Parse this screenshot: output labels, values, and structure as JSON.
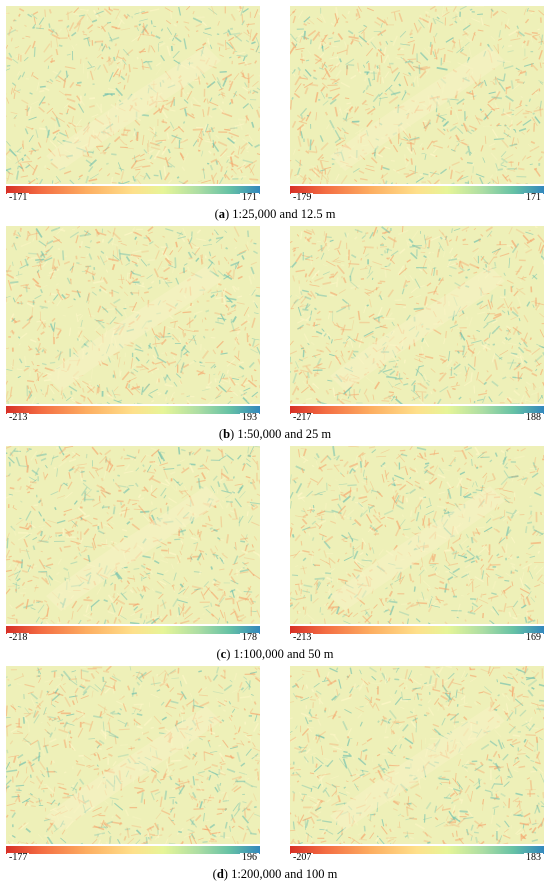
{
  "figure": {
    "colors": {
      "ramp": [
        "#d73027",
        "#f46d43",
        "#fdae61",
        "#fee08b",
        "#e6f598",
        "#abdda4",
        "#66c2a5",
        "#3288bd"
      ],
      "warm": "#f5a66e",
      "cool": "#6fbfae",
      "neutral": "#eef0b8"
    },
    "rows": [
      {
        "caption_letter": "a",
        "caption_text": " 1:25,000 and 12.5 m",
        "panels": [
          {
            "min": "-171",
            "max": "171"
          },
          {
            "min": "-179",
            "max": "171"
          }
        ]
      },
      {
        "caption_letter": "b",
        "caption_text": " 1:50,000 and 25 m",
        "panels": [
          {
            "min": "-213",
            "max": "193"
          },
          {
            "min": "-217",
            "max": "188"
          }
        ]
      },
      {
        "caption_letter": "c",
        "caption_text": " 1:100,000 and 50 m",
        "panels": [
          {
            "min": "-218",
            "max": "178"
          },
          {
            "min": "-213",
            "max": "169"
          }
        ]
      },
      {
        "caption_letter": "d",
        "caption_text": " 1:200,000 and 100 m",
        "panels": [
          {
            "min": "-177",
            "max": "196"
          },
          {
            "min": "-207",
            "max": "183"
          }
        ]
      }
    ]
  }
}
